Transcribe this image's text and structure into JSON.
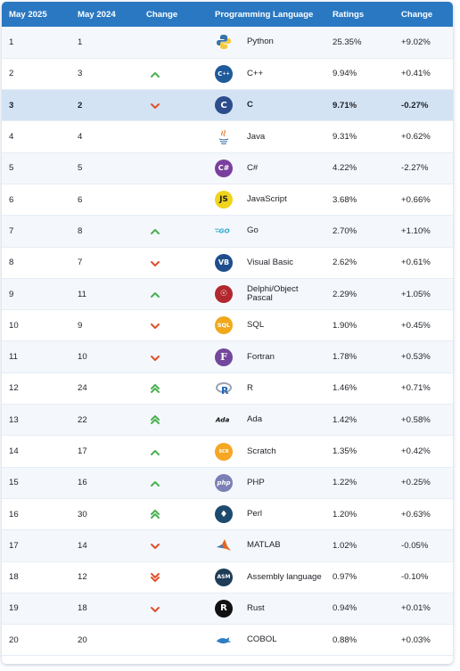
{
  "headers": [
    "May 2025",
    "May 2024",
    "Change",
    "Programming Language",
    "Ratings",
    "Change"
  ],
  "rows": [
    {
      "rank2025": "1",
      "rank2024": "1",
      "trend": "none",
      "language": "Python",
      "logo": "python-logo",
      "rating": "25.35%",
      "change": "+9.02%"
    },
    {
      "rank2025": "2",
      "rank2024": "3",
      "trend": "up",
      "language": "C++",
      "logo": "cpp-logo",
      "rating": "9.94%",
      "change": "+0.41%"
    },
    {
      "rank2025": "3",
      "rank2024": "2",
      "trend": "down",
      "language": "C",
      "logo": "c-logo",
      "rating": "9.71%",
      "change": "-0.27%",
      "highlight": true
    },
    {
      "rank2025": "4",
      "rank2024": "4",
      "trend": "none",
      "language": "Java",
      "logo": "java-logo",
      "rating": "9.31%",
      "change": "+0.62%"
    },
    {
      "rank2025": "5",
      "rank2024": "5",
      "trend": "none",
      "language": "C#",
      "logo": "csharp-logo",
      "rating": "4.22%",
      "change": "-2.27%"
    },
    {
      "rank2025": "6",
      "rank2024": "6",
      "trend": "none",
      "language": "JavaScript",
      "logo": "javascript-logo",
      "rating": "3.68%",
      "change": "+0.66%"
    },
    {
      "rank2025": "7",
      "rank2024": "8",
      "trend": "up",
      "language": "Go",
      "logo": "go-logo",
      "rating": "2.70%",
      "change": "+1.10%"
    },
    {
      "rank2025": "8",
      "rank2024": "7",
      "trend": "down",
      "language": "Visual Basic",
      "logo": "visual-basic-logo",
      "rating": "2.62%",
      "change": "+0.61%"
    },
    {
      "rank2025": "9",
      "rank2024": "11",
      "trend": "up",
      "language": "Delphi/Object Pascal",
      "logo": "delphi-logo",
      "rating": "2.29%",
      "change": "+1.05%"
    },
    {
      "rank2025": "10",
      "rank2024": "9",
      "trend": "down",
      "language": "SQL",
      "logo": "sql-logo",
      "rating": "1.90%",
      "change": "+0.45%"
    },
    {
      "rank2025": "11",
      "rank2024": "10",
      "trend": "down",
      "language": "Fortran",
      "logo": "fortran-logo",
      "rating": "1.78%",
      "change": "+0.53%"
    },
    {
      "rank2025": "12",
      "rank2024": "24",
      "trend": "up2",
      "language": "R",
      "logo": "r-logo",
      "rating": "1.46%",
      "change": "+0.71%"
    },
    {
      "rank2025": "13",
      "rank2024": "22",
      "trend": "up2",
      "language": "Ada",
      "logo": "ada-logo",
      "rating": "1.42%",
      "change": "+0.58%"
    },
    {
      "rank2025": "14",
      "rank2024": "17",
      "trend": "up",
      "language": "Scratch",
      "logo": "scratch-logo",
      "rating": "1.35%",
      "change": "+0.42%"
    },
    {
      "rank2025": "15",
      "rank2024": "16",
      "trend": "up",
      "language": "PHP",
      "logo": "php-logo",
      "rating": "1.22%",
      "change": "+0.25%"
    },
    {
      "rank2025": "16",
      "rank2024": "30",
      "trend": "up2",
      "language": "Perl",
      "logo": "perl-logo",
      "rating": "1.20%",
      "change": "+0.63%"
    },
    {
      "rank2025": "17",
      "rank2024": "14",
      "trend": "down",
      "language": "MATLAB",
      "logo": "matlab-logo",
      "rating": "1.02%",
      "change": "-0.05%"
    },
    {
      "rank2025": "18",
      "rank2024": "12",
      "trend": "down2",
      "language": "Assembly language",
      "logo": "assembly-logo",
      "rating": "0.97%",
      "change": "-0.10%"
    },
    {
      "rank2025": "19",
      "rank2024": "18",
      "trend": "down",
      "language": "Rust",
      "logo": "rust-logo",
      "rating": "0.94%",
      "change": "+0.01%"
    },
    {
      "rank2025": "20",
      "rank2024": "20",
      "trend": "none",
      "language": "COBOL",
      "logo": "cobol-logo",
      "rating": "0.88%",
      "change": "+0.03%"
    }
  ],
  "colors": {
    "header": "#2a78c2",
    "up": "#4caf50",
    "down": "#e0502a",
    "highlight_row": "#d3e3f4"
  }
}
